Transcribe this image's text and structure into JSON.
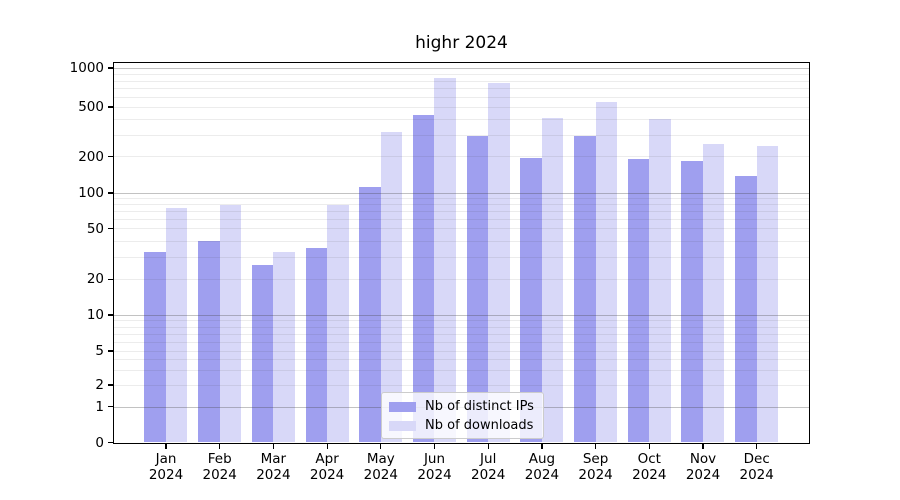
{
  "title": "highr 2024",
  "chart_data": {
    "type": "bar",
    "title": "highr 2024",
    "categories": [
      "Jan 2024",
      "Feb 2024",
      "Mar 2024",
      "Apr 2024",
      "May 2024",
      "Jun 2024",
      "Jul 2024",
      "Aug 2024",
      "Sep 2024",
      "Oct 2024",
      "Nov 2024",
      "Dec 2024"
    ],
    "series": [
      {
        "name": "Nb of distinct IPs",
        "color": "#9f9fef",
        "values": [
          33,
          40,
          26,
          35,
          113,
          435,
          290,
          195,
          290,
          192,
          184,
          138
        ]
      },
      {
        "name": "Nb of downloads",
        "color": "#d8d8f8",
        "values": [
          74,
          79,
          33,
          79,
          315,
          840,
          770,
          405,
          545,
          400,
          250,
          243
        ]
      }
    ],
    "yscale": "symlog",
    "yticks": [
      0,
      1,
      2,
      5,
      10,
      20,
      50,
      100,
      200,
      500,
      1000
    ],
    "ylim": [
      0,
      1150
    ],
    "xlabel": "",
    "ylabel": "",
    "grid": true,
    "legend_position": "lower-center-inside"
  },
  "colors": {
    "bar_distinct_ips": "#9f9fef",
    "bar_downloads": "#d8d8f8",
    "grid_major": "#bdbdbd",
    "grid_minor": "#e8e8e8",
    "axis": "#000000",
    "legend_border": "#cccccc"
  }
}
